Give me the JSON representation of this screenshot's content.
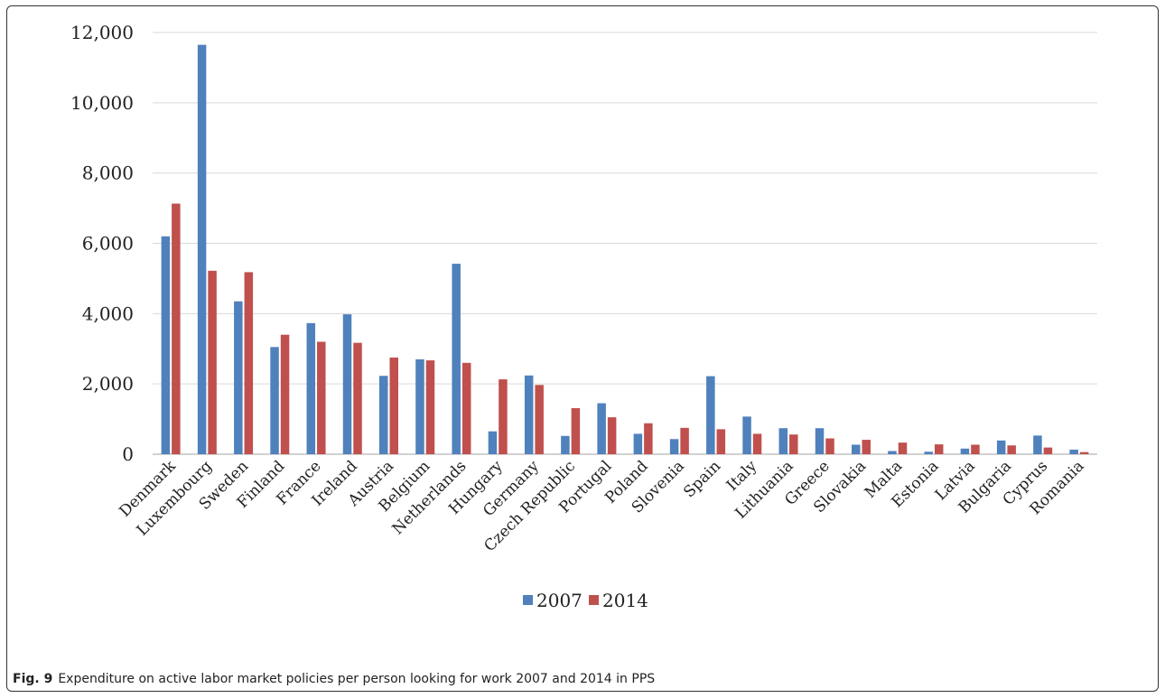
{
  "caption": {
    "label": "Fig. 9",
    "text": "Expenditure on active labor market policies per person looking for work 2007 and 2014 in PPS"
  },
  "chart_data": {
    "type": "bar",
    "title": "",
    "xlabel": "",
    "ylabel": "",
    "ylim": [
      0,
      12000
    ],
    "yticks": [
      0,
      2000,
      4000,
      6000,
      8000,
      10000,
      12000
    ],
    "ytick_labels": [
      "0",
      "2,000",
      "4,000",
      "6,000",
      "8,000",
      "10,000",
      "12,000"
    ],
    "grid": true,
    "legend_position": "bottom",
    "categories": [
      "Denmark",
      "Luxembourg",
      "Sweden",
      "Finland",
      "France",
      "Ireland",
      "Austria",
      "Belgium",
      "Netherlands",
      "Hungary",
      "Germany",
      "Czech Republic",
      "Portugal",
      "Poland",
      "Slovenia",
      "Spain",
      "Italy",
      "Lithuania",
      "Greece",
      "Slovakia",
      "Malta",
      "Estonia",
      "Latvia",
      "Bulgaria",
      "Cyprus",
      "Romania"
    ],
    "series": [
      {
        "name": "2007",
        "color": "#4F81BD",
        "values": [
          6200,
          11650,
          4350,
          3050,
          3730,
          3980,
          2230,
          2700,
          5420,
          650,
          2240,
          520,
          1450,
          580,
          430,
          2220,
          1070,
          740,
          740,
          270,
          90,
          70,
          160,
          390,
          530,
          130
        ]
      },
      {
        "name": "2014",
        "color": "#C0504D",
        "values": [
          7130,
          5220,
          5180,
          3400,
          3200,
          3170,
          2750,
          2670,
          2600,
          2130,
          1970,
          1310,
          1050,
          880,
          750,
          710,
          580,
          560,
          450,
          410,
          330,
          280,
          270,
          250,
          190,
          60
        ]
      }
    ]
  }
}
